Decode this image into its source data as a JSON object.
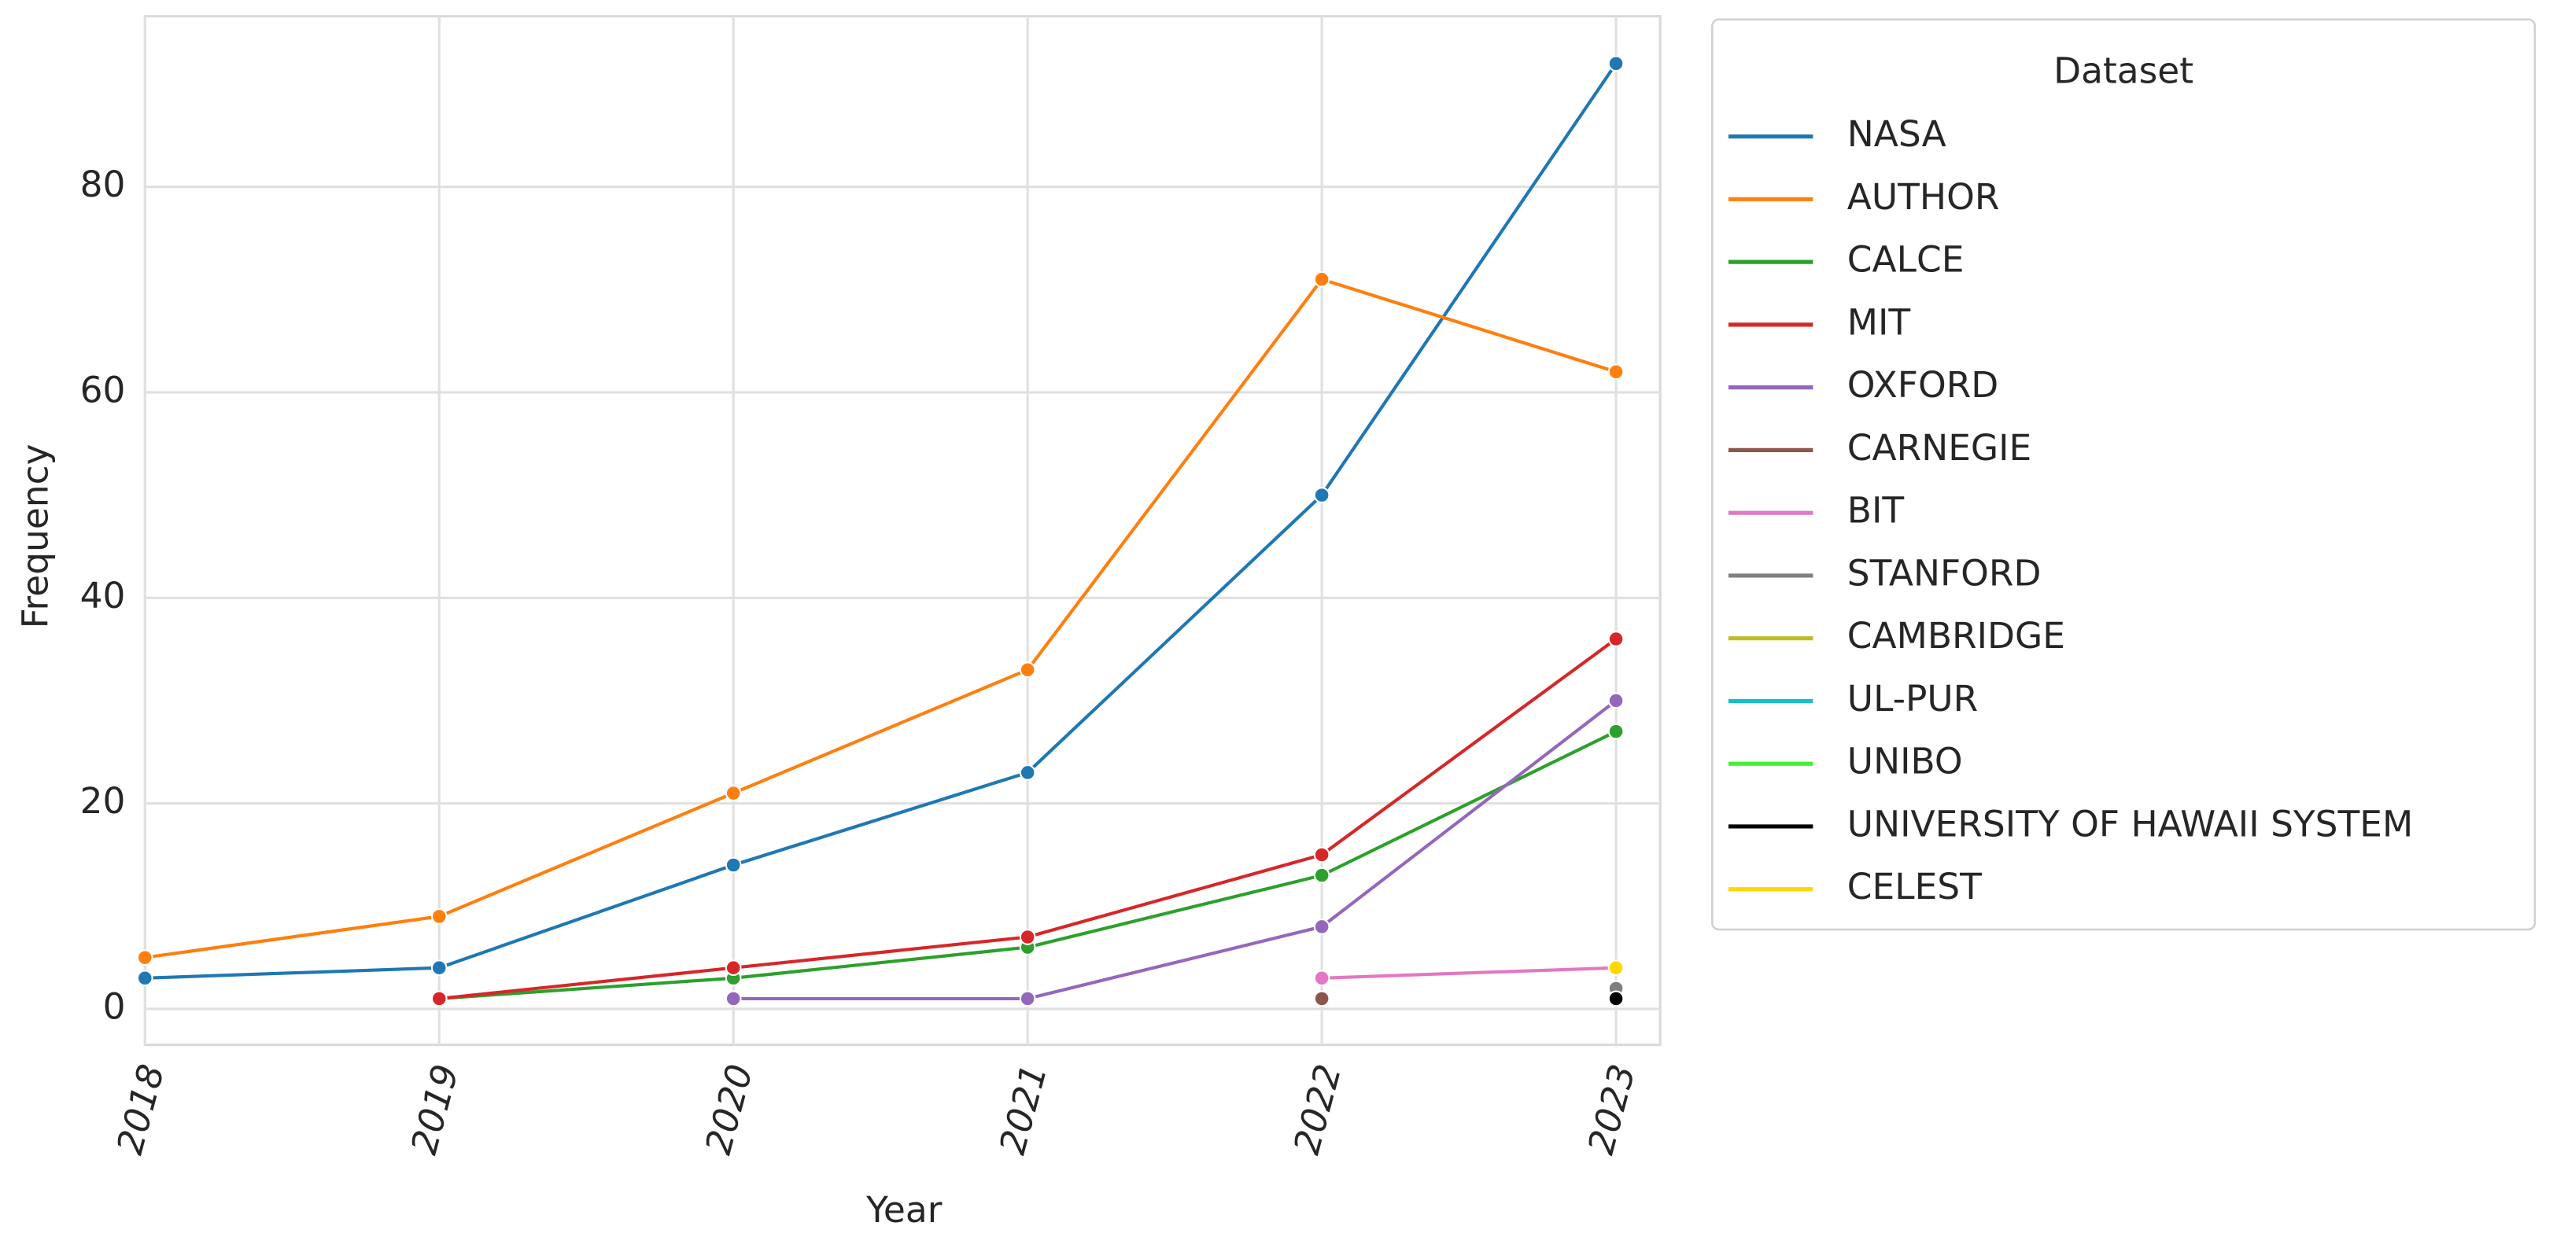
{
  "chart_data": {
    "type": "line",
    "x_label": "Year",
    "y_label": "Frequency",
    "legend_title": "Dataset",
    "legend_position": "outside right",
    "x": [
      2018,
      2019,
      2020,
      2021,
      2022,
      2023
    ],
    "xlim": [
      2018,
      2023.15
    ],
    "xticks": [
      2018,
      2019,
      2020,
      2021,
      2022,
      2023
    ],
    "ylim": [
      -3.5,
      96.6
    ],
    "yticks": [
      0,
      20,
      40,
      60,
      80
    ],
    "grid": true,
    "series": [
      {
        "name": "NASA",
        "color": "#1f77b4",
        "values": [
          3,
          4,
          14,
          23,
          50,
          92
        ]
      },
      {
        "name": "AUTHOR",
        "color": "#ff7f0e",
        "values": [
          5,
          9,
          21,
          33,
          71,
          62
        ]
      },
      {
        "name": "CALCE",
        "color": "#2ca02c",
        "values": [
          null,
          1,
          3,
          6,
          13,
          27
        ]
      },
      {
        "name": "MIT",
        "color": "#d62728",
        "values": [
          null,
          1,
          4,
          7,
          15,
          36
        ]
      },
      {
        "name": "OXFORD",
        "color": "#9467bd",
        "values": [
          null,
          null,
          1,
          1,
          8,
          30
        ]
      },
      {
        "name": "CARNEGIE",
        "color": "#8c564b",
        "values": [
          null,
          null,
          null,
          null,
          1,
          null
        ]
      },
      {
        "name": "BIT",
        "color": "#e377c2",
        "values": [
          null,
          null,
          null,
          null,
          3,
          4
        ]
      },
      {
        "name": "STANFORD",
        "color": "#7f7f7f",
        "values": [
          null,
          null,
          null,
          null,
          null,
          2
        ]
      },
      {
        "name": "CAMBRIDGE",
        "color": "#bcbd22",
        "values": [
          null,
          null,
          null,
          null,
          null,
          1
        ]
      },
      {
        "name": "UL-PUR",
        "color": "#17becf",
        "values": [
          null,
          null,
          null,
          null,
          null,
          1
        ]
      },
      {
        "name": "UNIBO",
        "color": "#44ee33",
        "values": [
          null,
          null,
          null,
          null,
          null,
          1
        ]
      },
      {
        "name": "UNIVERSITY OF HAWAII SYSTEM",
        "color": "#000000",
        "values": [
          null,
          null,
          null,
          null,
          null,
          1
        ]
      },
      {
        "name": "CELEST",
        "color": "#ffd700",
        "values": [
          null,
          null,
          null,
          null,
          null,
          4
        ]
      }
    ]
  }
}
